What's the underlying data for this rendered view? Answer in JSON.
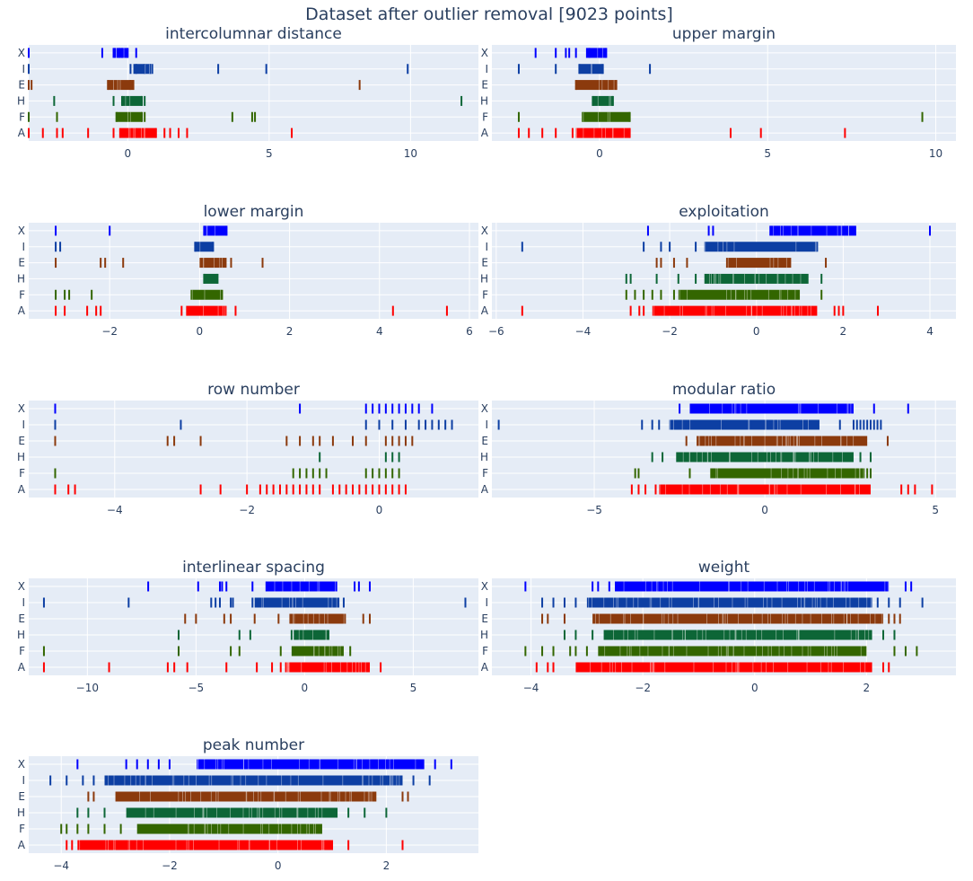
{
  "figure": {
    "title": "Dataset after outlier removal [9023 points]"
  },
  "colors": {
    "X": "#0000ff",
    "I": "#0d3fa3",
    "E": "#8b3a0d",
    "H": "#0d6637",
    "F": "#336600",
    "A": "#ff0000",
    "plot_bg": "#e5ecf6",
    "grid": "#ffffff",
    "text": "#2a3f5f"
  },
  "chart_data": [
    {
      "type": "scatter",
      "title": "intercolumnar distance",
      "categories": [
        "X",
        "I",
        "E",
        "H",
        "F",
        "A"
      ],
      "xlim": [
        -3.5,
        12.4
      ],
      "xticks": [
        0,
        5,
        10
      ],
      "series": [
        {
          "name": "X",
          "x": [
            -3.5,
            -0.9,
            -0.5,
            -0.45,
            -0.3,
            -0.2,
            0.0,
            0.3
          ],
          "dense": [
            [
              -0.4,
              0.0
            ]
          ]
        },
        {
          "name": "I",
          "x": [
            -3.5,
            0.1,
            0.3,
            0.6,
            0.8,
            3.2,
            4.9,
            9.9
          ],
          "dense": [
            [
              0.2,
              0.9
            ]
          ]
        },
        {
          "name": "E",
          "x": [
            -3.5,
            -3.4,
            -0.7,
            0.1,
            0.2,
            8.2
          ],
          "dense": [
            [
              -0.7,
              0.2
            ]
          ]
        },
        {
          "name": "H",
          "x": [
            -2.6,
            -0.5,
            -0.2,
            0.5,
            0.6,
            11.8
          ],
          "dense": [
            [
              -0.2,
              0.5
            ]
          ]
        },
        {
          "name": "F",
          "x": [
            -3.5,
            -2.5,
            -0.4,
            0.5,
            0.6,
            3.7,
            4.4,
            4.5
          ],
          "dense": [
            [
              -0.4,
              0.5
            ]
          ]
        },
        {
          "name": "A",
          "x": [
            -3.5,
            -3.0,
            -2.5,
            -2.3,
            -1.4,
            -0.5,
            1.0,
            1.3,
            1.5,
            1.8,
            2.1,
            5.8
          ],
          "dense": [
            [
              -0.3,
              1.0
            ]
          ]
        }
      ]
    },
    {
      "type": "scatter",
      "title": "upper margin",
      "categories": [
        "X",
        "I",
        "E",
        "H",
        "F",
        "A"
      ],
      "xlim": [
        -3.2,
        10.6
      ],
      "xticks": [
        0,
        5,
        10
      ],
      "series": [
        {
          "name": "X",
          "x": [
            -1.9,
            -1.3,
            -1.0,
            -0.9,
            -0.7,
            -0.3,
            0.2
          ],
          "dense": [
            [
              -0.4,
              0.2
            ]
          ]
        },
        {
          "name": "I",
          "x": [
            -2.4,
            -1.3,
            -0.6,
            0.1,
            1.5
          ],
          "dense": [
            [
              -0.6,
              0.1
            ]
          ]
        },
        {
          "name": "E",
          "x": [
            -0.7,
            0.5
          ],
          "dense": [
            [
              -0.7,
              0.5
            ]
          ]
        },
        {
          "name": "H",
          "x": [
            -0.2,
            0.4
          ],
          "dense": [
            [
              -0.2,
              0.4
            ]
          ]
        },
        {
          "name": "F",
          "x": [
            -2.4,
            -0.5,
            0.9,
            9.6
          ],
          "dense": [
            [
              -0.5,
              0.9
            ]
          ]
        },
        {
          "name": "A",
          "x": [
            -2.4,
            -2.1,
            -1.7,
            -1.3,
            -0.8,
            0.9,
            3.9,
            4.8,
            7.3
          ],
          "dense": [
            [
              -0.7,
              0.9
            ]
          ]
        }
      ]
    },
    {
      "type": "scatter",
      "title": "lower margin",
      "categories": [
        "X",
        "I",
        "E",
        "H",
        "F",
        "A"
      ],
      "xlim": [
        -3.8,
        6.2
      ],
      "xticks": [
        -2,
        0,
        2,
        4,
        6
      ],
      "series": [
        {
          "name": "X",
          "x": [
            -3.2,
            -2.0,
            0.1,
            0.6
          ],
          "dense": [
            [
              0.1,
              0.6
            ]
          ]
        },
        {
          "name": "I",
          "x": [
            -3.2,
            -3.1,
            -0.1,
            0.3
          ],
          "dense": [
            [
              -0.1,
              0.3
            ]
          ]
        },
        {
          "name": "E",
          "x": [
            -3.2,
            -2.2,
            -2.1,
            -1.7,
            0.7,
            1.4
          ],
          "dense": [
            [
              0.0,
              0.6
            ]
          ]
        },
        {
          "name": "H",
          "x": [
            0.1,
            0.4
          ],
          "dense": [
            [
              0.1,
              0.4
            ]
          ]
        },
        {
          "name": "F",
          "x": [
            -3.2,
            -3.0,
            -2.9,
            -2.4,
            0.5
          ],
          "dense": [
            [
              -0.2,
              0.5
            ]
          ]
        },
        {
          "name": "A",
          "x": [
            -3.2,
            -3.0,
            -2.5,
            -2.3,
            -2.2,
            -0.4,
            0.8,
            4.3,
            5.5
          ],
          "dense": [
            [
              -0.3,
              0.6
            ]
          ]
        }
      ]
    },
    {
      "type": "scatter",
      "title": "exploitation",
      "categories": [
        "X",
        "I",
        "E",
        "H",
        "F",
        "A"
      ],
      "xlim": [
        -6.1,
        4.6
      ],
      "xticks": [
        -6,
        -4,
        -2,
        0,
        2,
        4
      ],
      "series": [
        {
          "name": "X",
          "x": [
            -2.5,
            -1.1,
            -1.0,
            4.0
          ],
          "dense": [
            [
              0.3,
              2.3
            ]
          ]
        },
        {
          "name": "I",
          "x": [
            -5.4,
            -2.6,
            -2.2,
            -2.0,
            -1.4,
            1.4
          ],
          "dense": [
            [
              -1.2,
              1.4
            ]
          ]
        },
        {
          "name": "E",
          "x": [
            -2.3,
            -2.2,
            -1.9,
            -1.6,
            1.6
          ],
          "dense": [
            [
              -0.7,
              0.8
            ]
          ]
        },
        {
          "name": "H",
          "x": [
            -3.0,
            -2.9,
            -2.3,
            -1.8,
            -1.4,
            1.5
          ],
          "dense": [
            [
              -1.2,
              1.2
            ]
          ]
        },
        {
          "name": "F",
          "x": [
            -3.0,
            -2.8,
            -2.6,
            -2.4,
            -2.2,
            -1.9,
            1.5
          ],
          "dense": [
            [
              -1.8,
              1.0
            ]
          ]
        },
        {
          "name": "A",
          "x": [
            -5.4,
            -2.9,
            -2.7,
            -2.6,
            1.8,
            1.9,
            2.0,
            2.8
          ],
          "dense": [
            [
              -2.4,
              1.4
            ]
          ]
        }
      ]
    },
    {
      "type": "scatter",
      "title": "row number",
      "categories": [
        "X",
        "I",
        "E",
        "H",
        "F",
        "A"
      ],
      "xlim": [
        -5.3,
        1.5
      ],
      "xticks": [
        -4,
        -2,
        0
      ],
      "series": [
        {
          "name": "X",
          "x": [
            -4.9,
            -1.2,
            -0.2,
            -0.1,
            0.0,
            0.1,
            0.2,
            0.3,
            0.4,
            0.5,
            0.6,
            0.8
          ],
          "dense": []
        },
        {
          "name": "I",
          "x": [
            -4.9,
            -3.0,
            -0.2,
            0.0,
            0.2,
            0.4,
            0.6,
            0.7,
            0.8,
            0.9,
            1.0,
            1.1
          ],
          "dense": []
        },
        {
          "name": "E",
          "x": [
            -4.9,
            -3.2,
            -3.1,
            -2.7,
            -1.4,
            -1.2,
            -1.0,
            -0.9,
            -0.7,
            -0.4,
            -0.2,
            0.1,
            0.2,
            0.3,
            0.4,
            0.5
          ],
          "dense": []
        },
        {
          "name": "H",
          "x": [
            -0.9,
            0.1,
            0.2,
            0.3
          ],
          "dense": []
        },
        {
          "name": "F",
          "x": [
            -4.9,
            -1.3,
            -1.2,
            -1.1,
            -1.0,
            -0.9,
            -0.8,
            -0.2,
            -0.1,
            0.0,
            0.1,
            0.2,
            0.3
          ],
          "dense": []
        },
        {
          "name": "A",
          "x": [
            -4.9,
            -4.7,
            -4.6,
            -2.7,
            -2.4,
            -2.0,
            -1.8,
            -1.7,
            -1.6,
            -1.5,
            -1.4,
            -1.3,
            -1.2,
            -1.1,
            -1.0,
            -0.9,
            -0.7,
            -0.6,
            -0.5,
            -0.4,
            -0.3,
            -0.2,
            -0.1,
            0.0,
            0.1,
            0.2,
            0.3,
            0.4
          ],
          "dense": []
        }
      ]
    },
    {
      "type": "scatter",
      "title": "modular ratio",
      "categories": [
        "X",
        "I",
        "E",
        "H",
        "F",
        "A"
      ],
      "xlim": [
        -8.0,
        5.6
      ],
      "xticks": [
        -5,
        0,
        5
      ],
      "series": [
        {
          "name": "X",
          "x": [
            -2.5,
            3.2,
            4.2
          ],
          "dense": [
            [
              -2.2,
              2.6
            ]
          ]
        },
        {
          "name": "I",
          "x": [
            -7.8,
            -3.6,
            -3.3,
            -3.1,
            2.2,
            2.6,
            2.7,
            2.8,
            2.9,
            3.0,
            3.1,
            3.2,
            3.3,
            3.4
          ],
          "dense": [
            [
              -2.8,
              1.6
            ]
          ]
        },
        {
          "name": "E",
          "x": [
            -2.3,
            3.6
          ],
          "dense": [
            [
              -2.0,
              3.0
            ]
          ]
        },
        {
          "name": "H",
          "x": [
            -3.3,
            -3.0,
            2.8,
            3.1
          ],
          "dense": [
            [
              -2.6,
              2.6
            ]
          ]
        },
        {
          "name": "F",
          "x": [
            -3.8,
            -3.7,
            -2.2,
            2.9,
            3.0,
            3.1
          ],
          "dense": [
            [
              -1.6,
              2.9
            ]
          ]
        },
        {
          "name": "A",
          "x": [
            -3.9,
            -3.7,
            -3.5,
            -3.2,
            4.0,
            4.2,
            4.4,
            4.9
          ],
          "dense": [
            [
              -3.1,
              3.1
            ]
          ]
        }
      ]
    },
    {
      "type": "scatter",
      "title": "interlinear spacing",
      "categories": [
        "X",
        "I",
        "E",
        "H",
        "F",
        "A"
      ],
      "xlim": [
        -12.7,
        8.0
      ],
      "xticks": [
        -10,
        -5,
        0,
        5
      ],
      "series": [
        {
          "name": "X",
          "x": [
            -7.2,
            -4.9,
            -3.9,
            -3.8,
            -3.6,
            -2.4,
            -1.6,
            2.3,
            2.5,
            3.0
          ],
          "dense": [
            [
              -1.8,
              1.5
            ]
          ]
        },
        {
          "name": "I",
          "x": [
            -12.0,
            -8.1,
            -4.3,
            -4.1,
            -3.9,
            -3.4,
            -3.3,
            -2.4,
            -2.0,
            1.8,
            7.4
          ],
          "dense": [
            [
              -2.3,
              1.6
            ]
          ]
        },
        {
          "name": "E",
          "x": [
            -5.5,
            -5.0,
            -3.7,
            -3.4,
            -2.3,
            -1.2,
            2.7,
            3.0
          ],
          "dense": [
            [
              -0.7,
              1.9
            ]
          ]
        },
        {
          "name": "H",
          "x": [
            -5.8,
            -3.0,
            -2.5,
            -0.6,
            1.1
          ],
          "dense": [
            [
              -0.5,
              1.1
            ]
          ]
        },
        {
          "name": "F",
          "x": [
            -12.0,
            -5.8,
            -3.4,
            -3.0,
            -1.1,
            2.1
          ],
          "dense": [
            [
              -0.6,
              1.8
            ]
          ]
        },
        {
          "name": "A",
          "x": [
            -12.0,
            -9.0,
            -6.3,
            -6.0,
            -5.4,
            -3.6,
            -2.2,
            -1.5,
            -1.1,
            3.5
          ],
          "dense": [
            [
              -0.9,
              3.0
            ]
          ]
        }
      ]
    },
    {
      "type": "scatter",
      "title": "weight",
      "categories": [
        "X",
        "I",
        "E",
        "H",
        "F",
        "A"
      ],
      "xlim": [
        -4.7,
        3.6
      ],
      "xticks": [
        -4,
        -2,
        0,
        2
      ],
      "series": [
        {
          "name": "X",
          "x": [
            -4.1,
            -2.9,
            -2.8,
            -2.6,
            2.7,
            2.8
          ],
          "dense": [
            [
              -2.5,
              2.4
            ]
          ]
        },
        {
          "name": "I",
          "x": [
            -3.8,
            -3.6,
            -3.4,
            -3.2,
            2.2,
            2.4,
            2.6,
            3.0
          ],
          "dense": [
            [
              -3.0,
              2.1
            ]
          ]
        },
        {
          "name": "E",
          "x": [
            -3.8,
            -3.7,
            -3.4,
            2.4,
            2.5,
            2.6
          ],
          "dense": [
            [
              -2.9,
              2.3
            ]
          ]
        },
        {
          "name": "H",
          "x": [
            -3.4,
            -3.2,
            -2.9,
            2.3,
            2.5
          ],
          "dense": [
            [
              -2.7,
              2.1
            ]
          ]
        },
        {
          "name": "F",
          "x": [
            -4.1,
            -3.8,
            -3.6,
            -3.3,
            -3.2,
            -3.0,
            2.5,
            2.7,
            2.9
          ],
          "dense": [
            [
              -2.8,
              2.0
            ]
          ]
        },
        {
          "name": "A",
          "x": [
            -3.9,
            -3.7,
            -3.6,
            2.3,
            2.4
          ],
          "dense": [
            [
              -3.2,
              2.1
            ]
          ]
        }
      ]
    },
    {
      "type": "scatter",
      "title": "peak number",
      "categories": [
        "X",
        "I",
        "E",
        "H",
        "F",
        "A"
      ],
      "xlim": [
        -4.6,
        3.7
      ],
      "xticks": [
        -4,
        -2,
        0,
        2
      ],
      "series": [
        {
          "name": "X",
          "x": [
            -3.7,
            -2.8,
            -2.6,
            -2.4,
            -2.2,
            -2.0,
            2.6,
            2.9,
            3.2
          ],
          "dense": [
            [
              -1.5,
              2.7
            ]
          ]
        },
        {
          "name": "I",
          "x": [
            -4.2,
            -3.9,
            -3.6,
            -3.4,
            2.5,
            2.8
          ],
          "dense": [
            [
              -3.2,
              2.3
            ]
          ]
        },
        {
          "name": "E",
          "x": [
            -3.5,
            -3.4,
            1.8,
            2.3,
            2.4
          ],
          "dense": [
            [
              -3.0,
              1.8
            ]
          ]
        },
        {
          "name": "H",
          "x": [
            -3.7,
            -3.5,
            -3.2,
            1.3,
            1.6,
            2.0
          ],
          "dense": [
            [
              -2.8,
              1.1
            ]
          ]
        },
        {
          "name": "F",
          "x": [
            -4.0,
            -3.9,
            -3.7,
            -3.5,
            -3.2,
            -2.9,
            0.6,
            0.8
          ],
          "dense": [
            [
              -2.6,
              0.8
            ]
          ]
        },
        {
          "name": "A",
          "x": [
            -3.9,
            -3.8,
            1.0,
            1.3,
            2.3
          ],
          "dense": [
            [
              -3.7,
              1.0
            ]
          ]
        }
      ]
    }
  ]
}
